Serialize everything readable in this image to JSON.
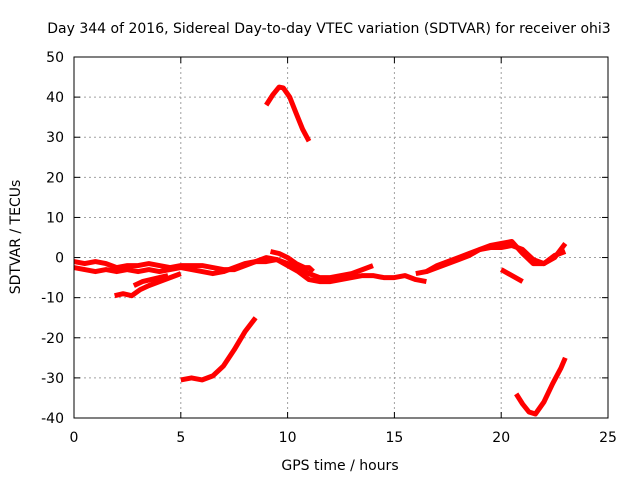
{
  "chart_data": {
    "type": "line",
    "title": "Day 344 of 2016, Sidereal Day-to-day VTEC variation (SDTVAR) for receiver ohi3",
    "xlabel": "GPS time / hours",
    "ylabel": "SDTVAR / TECUs",
    "xlim": [
      0,
      25
    ],
    "ylim": [
      -40,
      50
    ],
    "xticks": [
      0,
      5,
      10,
      15,
      20,
      25
    ],
    "yticks": [
      -40,
      -30,
      -20,
      -10,
      0,
      10,
      20,
      30,
      40,
      50
    ],
    "grid": true,
    "line_color": "#ff0000",
    "series": [
      {
        "name": "main-band-upper",
        "x": [
          0,
          0.5,
          1,
          1.5,
          2,
          2.5,
          3,
          3.5,
          4,
          4.5,
          5,
          5.5,
          6,
          6.5,
          7,
          7.5,
          8,
          8.5,
          9,
          9.5,
          10,
          10.5,
          11,
          11.5,
          12,
          12.5,
          13,
          13.5,
          14
        ],
        "y": [
          -1,
          -1.5,
          -1,
          -1.5,
          -2.5,
          -2,
          -2,
          -1.5,
          -2,
          -2.5,
          -2,
          -2,
          -2,
          -2.5,
          -3,
          -3,
          -2,
          -1,
          -1,
          -0.5,
          -1.5,
          -2.5,
          -4,
          -5,
          -5,
          -4.5,
          -4,
          -3,
          -2
        ]
      },
      {
        "name": "main-band-lower",
        "x": [
          0,
          0.5,
          1,
          1.5,
          2,
          2.5,
          3,
          3.5,
          4,
          4.5,
          5,
          5.5,
          6,
          6.5,
          7,
          7.5,
          8,
          8.5,
          9,
          9.5,
          10,
          10.5,
          11,
          11.5,
          12,
          12.5,
          13,
          13.5,
          14,
          14.5,
          15,
          15.5,
          16,
          16.5
        ],
        "y": [
          -2.5,
          -3,
          -3.5,
          -3,
          -3.5,
          -3,
          -3.5,
          -3,
          -3.5,
          -3,
          -2.5,
          -3,
          -3.5,
          -4,
          -3.5,
          -2.5,
          -1.5,
          -1,
          0,
          -0.5,
          -2,
          -3.5,
          -5.5,
          -6,
          -6,
          -5.5,
          -5,
          -4.5,
          -4.5,
          -5,
          -5,
          -4.5,
          -5.5,
          -6
        ]
      },
      {
        "name": "dip-segment",
        "x": [
          1.9,
          2.3,
          2.7,
          3.1,
          3.5,
          4,
          4.5,
          5
        ],
        "y": [
          -9.5,
          -9,
          -9.5,
          -8,
          -7,
          -6,
          -5,
          -4
        ]
      },
      {
        "name": "early-branch",
        "x": [
          2.8,
          3.2,
          3.6,
          4,
          4.4
        ],
        "y": [
          -7,
          -6,
          -5.5,
          -5,
          -4.5
        ]
      },
      {
        "name": "kink-segment",
        "x": [
          9.2,
          9.6,
          10,
          10.4,
          10.8,
          11,
          11.2
        ],
        "y": [
          1.5,
          1,
          0,
          -1.5,
          -2.5,
          -2.5,
          -3.5
        ]
      },
      {
        "name": "late-rise",
        "x": [
          16,
          16.5,
          17,
          17.5,
          18,
          18.5,
          19,
          19.5,
          20,
          20.5,
          21,
          21.5,
          22,
          22.5,
          23
        ],
        "y": [
          -4,
          -3.5,
          -2,
          -1,
          0,
          1,
          2,
          3,
          3.5,
          4,
          1,
          -1.5,
          -1.5,
          0.5,
          1.5
        ]
      },
      {
        "name": "late-upper",
        "x": [
          16.5,
          17,
          17.5,
          18,
          18.5,
          19,
          19.5,
          20,
          20.5,
          21,
          21.5,
          22,
          22.5,
          23
        ],
        "y": [
          -3.5,
          -2.5,
          -1.5,
          -0.5,
          0.5,
          2,
          2.5,
          2.5,
          3,
          2,
          -0.5,
          -1.5,
          0,
          3.5
        ]
      },
      {
        "name": "short-drop",
        "x": [
          20,
          20.5,
          21
        ],
        "y": [
          -3,
          -4.5,
          -6
        ]
      },
      {
        "name": "upper-arc",
        "x": [
          9.0,
          9.3,
          9.6,
          9.8,
          10.1,
          10.4,
          10.7,
          11.0
        ],
        "y": [
          38,
          40.5,
          42.5,
          42.3,
          40,
          36,
          32,
          29
        ]
      },
      {
        "name": "lower-rise",
        "x": [
          5.0,
          5.5,
          6.0,
          6.5,
          7.0,
          7.5,
          8.0,
          8.5
        ],
        "y": [
          -30.5,
          -30,
          -30.5,
          -29.5,
          -27,
          -23,
          -18.5,
          -15
        ]
      },
      {
        "name": "bottom-valley",
        "x": [
          20.7,
          21.0,
          21.3,
          21.6,
          22.0,
          22.4,
          22.8,
          23.0
        ],
        "y": [
          -34,
          -36.5,
          -38.5,
          -39,
          -36,
          -31.5,
          -27.5,
          -25
        ]
      }
    ]
  }
}
